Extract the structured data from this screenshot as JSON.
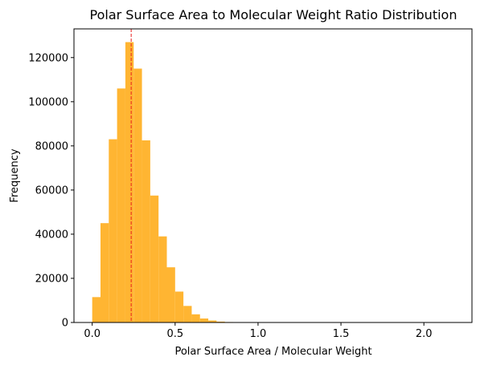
{
  "chart_data": {
    "type": "bar",
    "title": "Polar Surface Area to Molecular Weight Ratio Distribution",
    "xlabel": "Polar Surface Area / Molecular Weight",
    "ylabel": "Frequency",
    "xlim": [
      -0.11,
      2.29
    ],
    "ylim": [
      0,
      133000
    ],
    "x_ticks": [
      0.0,
      0.5,
      1.0,
      1.5,
      2.0
    ],
    "x_tick_labels": [
      "0.0",
      "0.5",
      "1.0",
      "1.5",
      "2.0"
    ],
    "y_ticks": [
      0,
      20000,
      40000,
      60000,
      80000,
      100000,
      120000
    ],
    "y_tick_labels": [
      "0",
      "20000",
      "40000",
      "60000",
      "80000",
      "100000",
      "120000"
    ],
    "bar_color": "#FFB532",
    "mean_line": {
      "x": 0.235,
      "color": "#E8201E",
      "style": "dashed"
    },
    "grid": false,
    "legend": "none",
    "bins": [
      {
        "x0": 0.0,
        "x1": 0.05,
        "value": 11500
      },
      {
        "x0": 0.05,
        "x1": 0.1,
        "value": 45000
      },
      {
        "x0": 0.1,
        "x1": 0.15,
        "value": 83000
      },
      {
        "x0": 0.15,
        "x1": 0.2,
        "value": 106000
      },
      {
        "x0": 0.2,
        "x1": 0.25,
        "value": 127000
      },
      {
        "x0": 0.25,
        "x1": 0.3,
        "value": 115000
      },
      {
        "x0": 0.3,
        "x1": 0.35,
        "value": 82500
      },
      {
        "x0": 0.35,
        "x1": 0.4,
        "value": 57500
      },
      {
        "x0": 0.4,
        "x1": 0.45,
        "value": 39000
      },
      {
        "x0": 0.45,
        "x1": 0.5,
        "value": 25000
      },
      {
        "x0": 0.5,
        "x1": 0.55,
        "value": 14000
      },
      {
        "x0": 0.55,
        "x1": 0.6,
        "value": 7500
      },
      {
        "x0": 0.6,
        "x1": 0.65,
        "value": 3700
      },
      {
        "x0": 0.65,
        "x1": 0.7,
        "value": 1800
      },
      {
        "x0": 0.7,
        "x1": 0.75,
        "value": 900
      },
      {
        "x0": 0.75,
        "x1": 0.8,
        "value": 400
      },
      {
        "x0": 0.8,
        "x1": 0.85,
        "value": 200
      },
      {
        "x0": 0.85,
        "x1": 0.9,
        "value": 100
      },
      {
        "x0": 0.9,
        "x1": 0.95,
        "value": 50
      },
      {
        "x0": 0.95,
        "x1": 1.0,
        "value": 30
      },
      {
        "x0": 1.0,
        "x1": 1.05,
        "value": 20
      }
    ]
  }
}
